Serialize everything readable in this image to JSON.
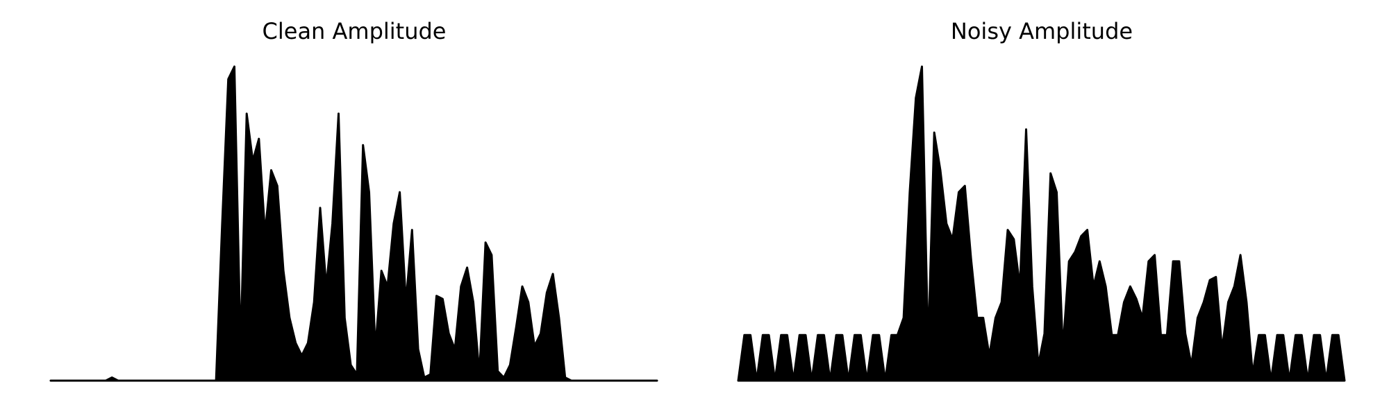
{
  "chart_data": [
    {
      "type": "area",
      "title": "Clean Amplitude",
      "color": "#000000",
      "ylim": [
        0,
        1
      ],
      "values": [
        0,
        0,
        0,
        0,
        0,
        0,
        0,
        0,
        0,
        0,
        0.01,
        0,
        0,
        0,
        0,
        0,
        0,
        0,
        0,
        0,
        0,
        0,
        0,
        0,
        0,
        0,
        0,
        0,
        0.5,
        0.96,
        1.0,
        0.1,
        0.85,
        0.7,
        0.77,
        0.47,
        0.67,
        0.62,
        0.35,
        0.2,
        0.12,
        0.08,
        0.12,
        0.25,
        0.55,
        0.3,
        0.5,
        0.85,
        0.2,
        0.05,
        0.02,
        0.75,
        0.6,
        0.1,
        0.35,
        0.3,
        0.5,
        0.6,
        0.25,
        0.48,
        0.1,
        0.01,
        0.02,
        0.27,
        0.26,
        0.15,
        0.1,
        0.3,
        0.36,
        0.25,
        0.02,
        0.44,
        0.4,
        0.03,
        0.01,
        0.05,
        0.17,
        0.3,
        0.25,
        0.11,
        0.15,
        0.28,
        0.34,
        0.2,
        0.01,
        0,
        0,
        0,
        0,
        0,
        0,
        0,
        0,
        0,
        0,
        0,
        0,
        0,
        0,
        0
      ]
    },
    {
      "type": "area",
      "title": "Noisy Amplitude",
      "color": "#000000",
      "ylim": [
        0,
        1
      ],
      "values": [
        0,
        0.145,
        0.145,
        0,
        0.145,
        0.145,
        0,
        0.145,
        0.145,
        0,
        0.145,
        0.145,
        0,
        0.145,
        0.145,
        0,
        0.145,
        0.145,
        0,
        0.145,
        0.145,
        0,
        0.145,
        0.145,
        0,
        0.145,
        0.145,
        0.2,
        0.6,
        0.9,
        1.0,
        0.1,
        0.79,
        0.67,
        0.5,
        0.45,
        0.6,
        0.62,
        0.39,
        0.2,
        0.2,
        0.08,
        0.2,
        0.25,
        0.48,
        0.45,
        0.3,
        0.8,
        0.3,
        0.05,
        0.15,
        0.66,
        0.6,
        0.1,
        0.38,
        0.41,
        0.46,
        0.48,
        0.3,
        0.38,
        0.3,
        0.145,
        0.145,
        0.25,
        0.3,
        0.26,
        0.2,
        0.38,
        0.4,
        0.145,
        0.145,
        0.38,
        0.38,
        0.15,
        0.05,
        0.2,
        0.25,
        0.32,
        0.33,
        0.1,
        0.25,
        0.3,
        0.4,
        0.25,
        0.02,
        0.145,
        0.145,
        0,
        0.145,
        0.145,
        0,
        0.145,
        0.145,
        0,
        0.145,
        0.145,
        0,
        0.145,
        0.145,
        0
      ]
    }
  ]
}
